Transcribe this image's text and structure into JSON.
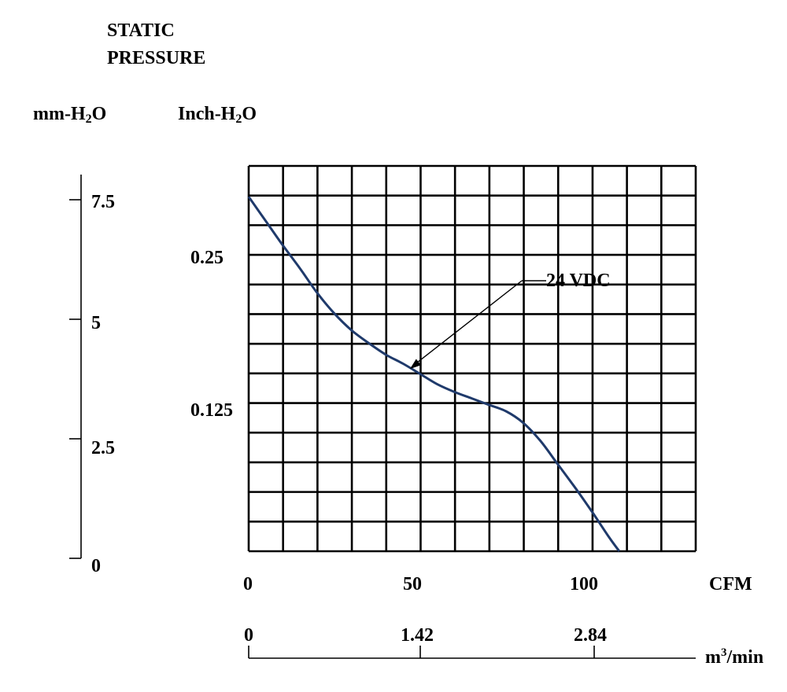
{
  "chart_data": {
    "type": "line",
    "title_line1": "STATIC",
    "title_line2": "PRESSURE",
    "ylabel_left": {
      "prefix": "mm-H",
      "sub": "2",
      "suffix": "O"
    },
    "ylabel_right": {
      "prefix": "Inch-H",
      "sub": "2",
      "suffix": "O"
    },
    "xlabel": "CFM",
    "xlabel2": {
      "prefix": "m",
      "sup": "3",
      "suffix": "/min"
    },
    "x_range_cfm": [
      0,
      130
    ],
    "y_range_inch": [
      0,
      0.3
    ],
    "y_range_mm": [
      0,
      7.5
    ],
    "mm_ticks": [
      "0",
      "2.5",
      "5",
      "7.5"
    ],
    "inch_ticks": [
      "0.125",
      "0.25"
    ],
    "cfm_ticks": [
      "0",
      "50",
      "100"
    ],
    "m3_ticks": [
      "0",
      "1.42",
      "2.84"
    ],
    "grid": true,
    "grid_cols": 13,
    "grid_rows": 13,
    "series": [
      {
        "name": "24 VDC",
        "color": "#1f3a6b",
        "points": [
          [
            0,
            0.276
          ],
          [
            5,
            0.257
          ],
          [
            10,
            0.238
          ],
          [
            15,
            0.22
          ],
          [
            20,
            0.201
          ],
          [
            25,
            0.185
          ],
          [
            30,
            0.172
          ],
          [
            35,
            0.162
          ],
          [
            40,
            0.153
          ],
          [
            45,
            0.146
          ],
          [
            50,
            0.138
          ],
          [
            55,
            0.13
          ],
          [
            60,
            0.124
          ],
          [
            65,
            0.119
          ],
          [
            70,
            0.114
          ],
          [
            75,
            0.109
          ],
          [
            80,
            0.1
          ],
          [
            85,
            0.086
          ],
          [
            90,
            0.068
          ],
          [
            95,
            0.05
          ],
          [
            100,
            0.031
          ],
          [
            105,
            0.011
          ],
          [
            108,
            0.0
          ]
        ]
      }
    ],
    "annotation": {
      "text": "24 VDC",
      "points_to": [
        47,
        0.142
      ]
    }
  }
}
